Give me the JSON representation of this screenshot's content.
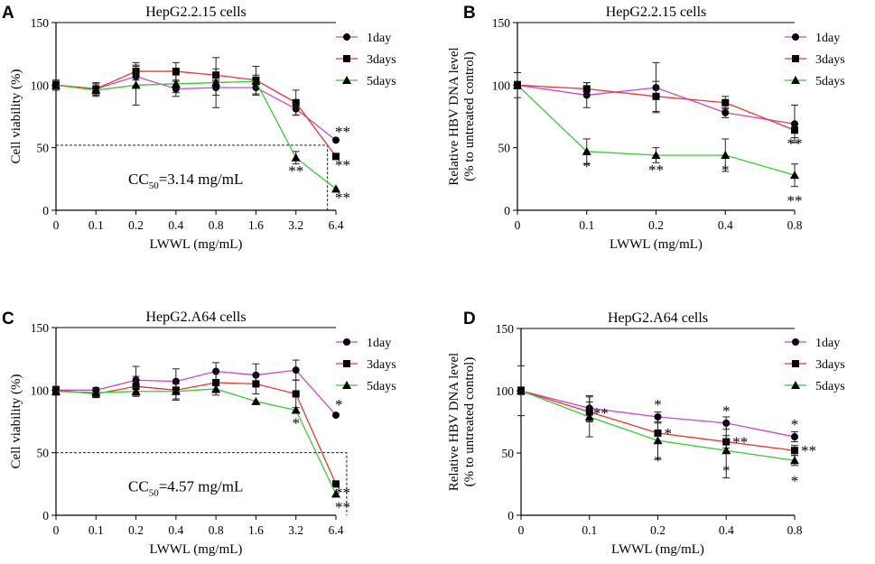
{
  "chart_data": [
    {
      "id": "A",
      "panel_label": "A",
      "type": "line",
      "title": "HepG2.2.15 cells",
      "xlabel": "LWWL (mg/mL)",
      "ylabel": "Cell viability (%)",
      "ylim": [
        0,
        150
      ],
      "yticks": [
        "0",
        "50",
        "100",
        "150"
      ],
      "categories": [
        "0",
        "0.1",
        "0.2",
        "0.4",
        "0.8",
        "1.6",
        "3.2",
        "6.4"
      ],
      "legend": [
        "1day",
        "3days",
        "5days"
      ],
      "series": [
        {
          "name": "1day",
          "color": "#cc44cc",
          "marker": "circle",
          "values": [
            100,
            97,
            107,
            97,
            98,
            98,
            81,
            56
          ],
          "errors": [
            4,
            4,
            8,
            6,
            6,
            6,
            5,
            0
          ]
        },
        {
          "name": "3days",
          "color": "#ee3333",
          "marker": "square",
          "values": [
            100,
            97,
            111,
            111,
            108,
            104,
            86,
            43
          ],
          "errors": [
            4,
            5,
            7,
            7,
            5,
            11,
            10,
            0
          ]
        },
        {
          "name": "5days",
          "color": "#33cc33",
          "marker": "triangle",
          "values": [
            100,
            96,
            100,
            101,
            102,
            103,
            42,
            17
          ],
          "errors": [
            3,
            5,
            16,
            7,
            20,
            5,
            5,
            0
          ]
        }
      ],
      "significance": [
        {
          "x_index": 7,
          "y": 56,
          "text": "**"
        },
        {
          "x_index": 7,
          "y": 43,
          "text": "**"
        },
        {
          "x_index": 7,
          "y": 17,
          "text": "**"
        },
        {
          "x_index": 6,
          "y": 42,
          "text": "**"
        }
      ],
      "cc50": {
        "prefix": "CC",
        "sub": "50",
        "rest": "=3.14 mg/mL",
        "x_cat": 6.79,
        "y": 52
      }
    },
    {
      "id": "B",
      "panel_label": "B",
      "type": "line",
      "title": "HepG2.2.15 cells",
      "xlabel": "LWWL (mg/mL)",
      "ylabel_lines": [
        "Relative HBV DNA level",
        "(% to untreated control)"
      ],
      "ylim": [
        0,
        150
      ],
      "yticks": [
        "0",
        "50",
        "100",
        "150"
      ],
      "categories": [
        "0",
        "0.1",
        "0.2",
        "0.4",
        "0.8"
      ],
      "legend": [
        "1day",
        "3days",
        "5days"
      ],
      "series": [
        {
          "name": "1day",
          "color": "#cc44cc",
          "marker": "circle",
          "values": [
            100,
            92,
            98,
            78,
            69
          ],
          "errors": [
            10,
            10,
            20,
            4,
            15
          ]
        },
        {
          "name": "3days",
          "color": "#ee3333",
          "marker": "square",
          "values": [
            100,
            97,
            91,
            86,
            64
          ],
          "errors": [
            3,
            5,
            12,
            5,
            6
          ]
        },
        {
          "name": "5days",
          "color": "#33cc33",
          "marker": "triangle",
          "values": [
            100,
            47,
            44,
            44,
            28
          ],
          "errors": [
            3,
            10,
            6,
            13,
            9
          ]
        }
      ],
      "significance": [
        {
          "x_index": 4,
          "y": 64,
          "text": "**"
        },
        {
          "x_index": 1,
          "y": 47,
          "text": "*"
        },
        {
          "x_index": 2,
          "y": 44,
          "text": "**"
        },
        {
          "x_index": 3,
          "y": 44,
          "text": "*"
        },
        {
          "x_index": 4,
          "y": 28,
          "text": "**"
        }
      ]
    },
    {
      "id": "C",
      "panel_label": "C",
      "type": "line",
      "title": "HepG2.A64 cells",
      "xlabel": "LWWL (mg/mL)",
      "ylabel": "Cell viability (%)",
      "ylim": [
        0,
        150
      ],
      "yticks": [
        "0",
        "50",
        "100",
        "150"
      ],
      "categories": [
        "0",
        "0.1",
        "0.2",
        "0.4",
        "0.8",
        "1.6",
        "3.2",
        "6.4"
      ],
      "legend": [
        "1day",
        "3days",
        "5days"
      ],
      "series": [
        {
          "name": "1day",
          "color": "#cc44cc",
          "marker": "circle",
          "values": [
            100,
            100,
            108,
            107,
            115,
            112,
            116,
            80
          ],
          "errors": [
            3,
            2,
            11,
            10,
            7,
            9,
            8,
            0
          ]
        },
        {
          "name": "3days",
          "color": "#ee3333",
          "marker": "square",
          "values": [
            100,
            97,
            103,
            100,
            106,
            105,
            97,
            25
          ],
          "errors": [
            3,
            3,
            8,
            8,
            10,
            8,
            11,
            0
          ]
        },
        {
          "name": "5days",
          "color": "#33cc33",
          "marker": "triangle",
          "values": [
            99,
            98,
            99,
            99,
            101,
            91,
            84,
            17
          ],
          "errors": [
            3,
            3,
            3,
            6,
            3,
            0,
            0,
            0
          ]
        }
      ],
      "significance": [
        {
          "x_index": 7,
          "y": 80,
          "text": "*"
        },
        {
          "x_index": 6,
          "y": 84,
          "text": "*"
        },
        {
          "x_index": 7,
          "y": 25,
          "text": "**"
        },
        {
          "x_index": 7,
          "y": 17,
          "text": "**"
        }
      ],
      "cc50": {
        "prefix": "CC",
        "sub": "50",
        "rest": "=4.57 mg/mL",
        "x_cat": 7.27,
        "y": 50
      }
    },
    {
      "id": "D",
      "panel_label": "D",
      "type": "line",
      "title": "HepG2.A64 cells",
      "xlabel": "LWWL (mg/mL)",
      "ylabel_lines": [
        "Relative HBV DNA level",
        "(% to untreated control)"
      ],
      "ylim": [
        0,
        150
      ],
      "yticks": [
        "0",
        "50",
        "100",
        "150"
      ],
      "categories": [
        "0",
        "0.1",
        "0.2",
        "0.4",
        "0.8"
      ],
      "legend": [
        "1day",
        "3days",
        "5days"
      ],
      "series": [
        {
          "name": "1day",
          "color": "#cc44cc",
          "marker": "circle",
          "values": [
            100,
            86,
            79,
            74,
            63
          ],
          "errors": [
            20,
            10,
            4,
            5,
            4
          ]
        },
        {
          "name": "3days",
          "color": "#ee3333",
          "marker": "square",
          "values": [
            100,
            83,
            66,
            59,
            52
          ],
          "errors": [
            3,
            8,
            8,
            5,
            4
          ]
        },
        {
          "name": "5days",
          "color": "#33cc33",
          "marker": "triangle",
          "values": [
            100,
            79,
            60,
            52,
            44
          ],
          "errors": [
            3,
            16,
            15,
            22,
            4
          ]
        }
      ],
      "significance": [
        {
          "x_index": 1,
          "y": 83,
          "text": "**"
        },
        {
          "x_index": 2,
          "y": 79,
          "text": "*"
        },
        {
          "x_index": 2,
          "y": 66,
          "text": "*"
        },
        {
          "x_index": 2,
          "y": 60,
          "text": "*"
        },
        {
          "x_index": 3,
          "y": 74,
          "text": "*"
        },
        {
          "x_index": 3,
          "y": 59,
          "text": "**"
        },
        {
          "x_index": 3,
          "y": 52,
          "text": "*"
        },
        {
          "x_index": 4,
          "y": 63,
          "text": "*"
        },
        {
          "x_index": 4,
          "y": 52,
          "text": "**"
        },
        {
          "x_index": 4,
          "y": 44,
          "text": "*"
        }
      ]
    }
  ]
}
